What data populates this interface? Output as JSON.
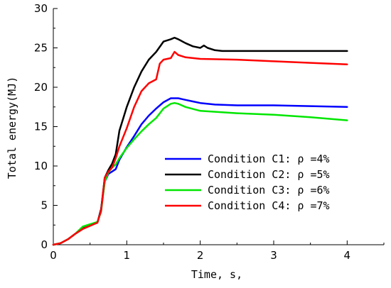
{
  "chart_data": {
    "type": "line",
    "title": "",
    "xlabel": "Time, s,",
    "ylabel": "Total energy(MJ)",
    "xlim": [
      0,
      4.5
    ],
    "ylim": [
      0,
      30
    ],
    "x_ticks": [
      "0",
      "1",
      "2",
      "3",
      "4"
    ],
    "y_ticks": [
      "0",
      "5",
      "10",
      "15",
      "20",
      "25",
      "30"
    ],
    "grid": false,
    "legend_position": "center-right",
    "series": [
      {
        "name": "Condition C1: ρ =4%",
        "color": "#0000ff",
        "x": [
          0,
          0.1,
          0.2,
          0.3,
          0.4,
          0.5,
          0.6,
          0.65,
          0.7,
          0.75,
          0.8,
          0.85,
          0.9,
          1.0,
          1.1,
          1.2,
          1.3,
          1.4,
          1.5,
          1.6,
          1.7,
          1.8,
          1.9,
          2.0,
          2.2,
          2.5,
          3.0,
          3.5,
          4.0
        ],
        "y": [
          0,
          0.2,
          0.7,
          1.4,
          2.1,
          2.5,
          2.8,
          4.5,
          8.0,
          9.0,
          9.3,
          9.6,
          10.8,
          12.4,
          13.8,
          15.3,
          16.4,
          17.3,
          18.1,
          18.6,
          18.6,
          18.4,
          18.2,
          18.0,
          17.8,
          17.7,
          17.7,
          17.6,
          17.5
        ]
      },
      {
        "name": "Condition C2: ρ =5%",
        "color": "#000000",
        "x": [
          0,
          0.1,
          0.2,
          0.3,
          0.4,
          0.5,
          0.6,
          0.65,
          0.7,
          0.75,
          0.8,
          0.85,
          0.9,
          0.95,
          1.0,
          1.1,
          1.2,
          1.3,
          1.4,
          1.5,
          1.6,
          1.65,
          1.7,
          1.8,
          1.9,
          2.0,
          2.05,
          2.1,
          2.2,
          2.3,
          2.5,
          3.0,
          3.5,
          4.0
        ],
        "y": [
          0,
          0.2,
          0.7,
          1.4,
          2.0,
          2.5,
          2.8,
          4.5,
          8.5,
          9.5,
          10.3,
          11.5,
          14.5,
          16.0,
          17.5,
          20.0,
          22.0,
          23.5,
          24.5,
          25.8,
          26.1,
          26.3,
          26.1,
          25.6,
          25.2,
          25.0,
          25.3,
          25.0,
          24.7,
          24.6,
          24.6,
          24.6,
          24.6,
          24.6
        ]
      },
      {
        "name": "Condition C3: ρ =6%",
        "color": "#00e600",
        "x": [
          0,
          0.1,
          0.2,
          0.3,
          0.4,
          0.5,
          0.6,
          0.65,
          0.7,
          0.75,
          0.8,
          0.85,
          0.9,
          1.0,
          1.1,
          1.2,
          1.3,
          1.4,
          1.5,
          1.6,
          1.65,
          1.7,
          1.8,
          2.0,
          2.5,
          3.0,
          3.5,
          4.0
        ],
        "y": [
          0,
          0.2,
          0.7,
          1.4,
          2.3,
          2.6,
          2.9,
          4.2,
          8.0,
          9.2,
          9.8,
          10.2,
          11.0,
          12.3,
          13.4,
          14.4,
          15.3,
          16.1,
          17.3,
          17.9,
          18.0,
          17.9,
          17.5,
          17.0,
          16.7,
          16.5,
          16.2,
          15.8
        ]
      },
      {
        "name": "Condition C4: ρ =7%",
        "color": "#ff0000",
        "x": [
          0,
          0.1,
          0.2,
          0.3,
          0.4,
          0.5,
          0.6,
          0.65,
          0.7,
          0.75,
          0.8,
          0.85,
          0.9,
          1.0,
          1.1,
          1.2,
          1.3,
          1.4,
          1.45,
          1.5,
          1.55,
          1.6,
          1.65,
          1.7,
          1.8,
          2.0,
          2.5,
          3.0,
          3.5,
          4.0
        ],
        "y": [
          0,
          0.2,
          0.7,
          1.4,
          2.0,
          2.4,
          2.8,
          4.3,
          8.5,
          9.3,
          9.8,
          11.0,
          12.5,
          14.8,
          17.5,
          19.5,
          20.5,
          21.0,
          23.0,
          23.5,
          23.6,
          23.7,
          24.5,
          24.1,
          23.8,
          23.6,
          23.5,
          23.3,
          23.1,
          22.9
        ]
      }
    ]
  }
}
